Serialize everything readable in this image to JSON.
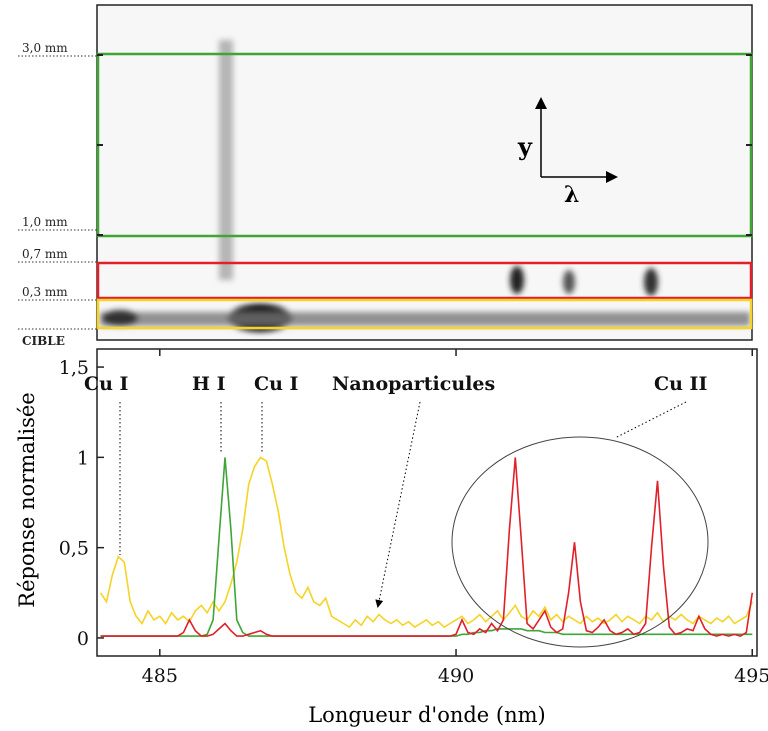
{
  "image_panel": {
    "labels": [
      "3,0 mm",
      "1,0 mm",
      "0,7 mm",
      "0,3 mm"
    ],
    "target": "CIBLE",
    "axis_y": "y",
    "axis_x": "λ"
  },
  "chart_data": {
    "type": "line",
    "xlabel": "Longueur d'onde (nm)",
    "ylabel": "Réponse normalisée",
    "annotations": [
      "Cu I",
      "H I",
      "Cu I",
      "Nanoparticules",
      "Cu II"
    ],
    "xlim": [
      483.94,
      495.08
    ],
    "xticks": [
      485,
      490,
      495
    ],
    "ylim": [
      -0.1,
      1.6
    ],
    "yticks": [
      0,
      {
        "value": 0.5,
        "label": "0,5"
      },
      1,
      {
        "value": 1.5,
        "label": "1,5"
      }
    ],
    "x": [
      484.0,
      484.1,
      484.2,
      484.3,
      484.4,
      484.5,
      484.6,
      484.7,
      484.8,
      484.9,
      485.0,
      485.1,
      485.2,
      485.3,
      485.4,
      485.5,
      485.6,
      485.7,
      485.8,
      485.9,
      486.0,
      486.1,
      486.2,
      486.3,
      486.4,
      486.5,
      486.6,
      486.7,
      486.8,
      486.9,
      487.0,
      487.1,
      487.2,
      487.3,
      487.4,
      487.5,
      487.6,
      487.7,
      487.8,
      487.9,
      488.0,
      488.1,
      488.2,
      488.3,
      488.4,
      488.5,
      488.6,
      488.7,
      488.8,
      488.9,
      489.0,
      489.1,
      489.2,
      489.3,
      489.4,
      489.5,
      489.6,
      489.7,
      489.8,
      489.9,
      490.0,
      490.1,
      490.2,
      490.3,
      490.4,
      490.5,
      490.6,
      490.7,
      490.8,
      490.9,
      491.0,
      491.1,
      491.2,
      491.3,
      491.4,
      491.5,
      491.6,
      491.7,
      491.8,
      491.9,
      492.0,
      492.1,
      492.2,
      492.3,
      492.4,
      492.5,
      492.6,
      492.7,
      492.8,
      492.9,
      493.0,
      493.1,
      493.2,
      493.3,
      493.4,
      493.5,
      493.6,
      493.7,
      493.8,
      493.9,
      494.0,
      494.1,
      494.2,
      494.3,
      494.4,
      494.5,
      494.6,
      494.7,
      494.8,
      494.9,
      495.0
    ],
    "series": [
      {
        "color": "#f5d327",
        "values": [
          0.25,
          0.2,
          0.35,
          0.45,
          0.42,
          0.2,
          0.12,
          0.08,
          0.15,
          0.1,
          0.12,
          0.08,
          0.14,
          0.1,
          0.12,
          0.09,
          0.15,
          0.18,
          0.14,
          0.2,
          0.15,
          0.2,
          0.3,
          0.42,
          0.6,
          0.85,
          0.95,
          1.0,
          0.98,
          0.85,
          0.7,
          0.5,
          0.35,
          0.25,
          0.22,
          0.28,
          0.2,
          0.18,
          0.22,
          0.12,
          0.1,
          0.08,
          0.06,
          0.1,
          0.07,
          0.12,
          0.09,
          0.13,
          0.1,
          0.08,
          0.1,
          0.07,
          0.09,
          0.06,
          0.08,
          0.1,
          0.07,
          0.09,
          0.06,
          0.08,
          0.1,
          0.12,
          0.08,
          0.1,
          0.13,
          0.09,
          0.12,
          0.15,
          0.1,
          0.14,
          0.18,
          0.12,
          0.1,
          0.15,
          0.12,
          0.17,
          0.1,
          0.13,
          0.09,
          0.12,
          0.1,
          0.08,
          0.12,
          0.09,
          0.11,
          0.08,
          0.1,
          0.13,
          0.09,
          0.12,
          0.1,
          0.08,
          0.12,
          0.1,
          0.14,
          0.09,
          0.12,
          0.1,
          0.13,
          0.1,
          0.08,
          0.12,
          0.1,
          0.08,
          0.11,
          0.09,
          0.12,
          0.08,
          0.1,
          0.12,
          0.2
        ]
      },
      {
        "color": "#3fa535",
        "values": [
          0.01,
          0.01,
          0.01,
          0.01,
          0.01,
          0.01,
          0.01,
          0.01,
          0.01,
          0.01,
          0.01,
          0.01,
          0.01,
          0.01,
          0.01,
          0.01,
          0.01,
          0.01,
          0.02,
          0.1,
          0.55,
          1.0,
          0.6,
          0.1,
          0.03,
          0.01,
          0.01,
          0.01,
          0.01,
          0.01,
          0.01,
          0.01,
          0.01,
          0.01,
          0.01,
          0.01,
          0.01,
          0.01,
          0.01,
          0.01,
          0.01,
          0.01,
          0.01,
          0.01,
          0.01,
          0.01,
          0.01,
          0.01,
          0.01,
          0.01,
          0.01,
          0.01,
          0.01,
          0.01,
          0.01,
          0.01,
          0.01,
          0.01,
          0.01,
          0.01,
          0.01,
          0.02,
          0.02,
          0.03,
          0.03,
          0.04,
          0.04,
          0.05,
          0.05,
          0.05,
          0.05,
          0.05,
          0.04,
          0.04,
          0.04,
          0.03,
          0.03,
          0.03,
          0.02,
          0.02,
          0.02,
          0.02,
          0.02,
          0.02,
          0.02,
          0.02,
          0.02,
          0.02,
          0.02,
          0.02,
          0.02,
          0.02,
          0.02,
          0.02,
          0.02,
          0.02,
          0.02,
          0.02,
          0.02,
          0.02,
          0.02,
          0.02,
          0.02,
          0.02,
          0.02,
          0.02,
          0.02,
          0.02,
          0.02,
          0.02,
          0.02
        ]
      },
      {
        "color": "#e0202a",
        "values": [
          0.01,
          0.01,
          0.01,
          0.01,
          0.01,
          0.01,
          0.01,
          0.01,
          0.01,
          0.01,
          0.01,
          0.01,
          0.01,
          0.01,
          0.03,
          0.1,
          0.04,
          0.01,
          0.01,
          0.02,
          0.05,
          0.08,
          0.04,
          0.01,
          0.01,
          0.02,
          0.03,
          0.04,
          0.02,
          0.01,
          0.01,
          0.01,
          0.01,
          0.01,
          0.01,
          0.01,
          0.01,
          0.01,
          0.01,
          0.01,
          0.01,
          0.01,
          0.01,
          0.01,
          0.01,
          0.01,
          0.01,
          0.01,
          0.01,
          0.01,
          0.01,
          0.01,
          0.01,
          0.01,
          0.01,
          0.01,
          0.01,
          0.01,
          0.01,
          0.01,
          0.02,
          0.1,
          0.03,
          0.02,
          0.05,
          0.03,
          0.08,
          0.04,
          0.1,
          0.6,
          1.0,
          0.55,
          0.08,
          0.05,
          0.1,
          0.15,
          0.06,
          0.03,
          0.05,
          0.25,
          0.53,
          0.2,
          0.04,
          0.03,
          0.06,
          0.1,
          0.04,
          0.02,
          0.03,
          0.05,
          0.02,
          0.03,
          0.08,
          0.5,
          0.87,
          0.4,
          0.06,
          0.02,
          0.03,
          0.05,
          0.04,
          0.12,
          0.05,
          0.02,
          0.01,
          0.02,
          0.01,
          0.02,
          0.01,
          0.03,
          0.25
        ]
      }
    ]
  }
}
